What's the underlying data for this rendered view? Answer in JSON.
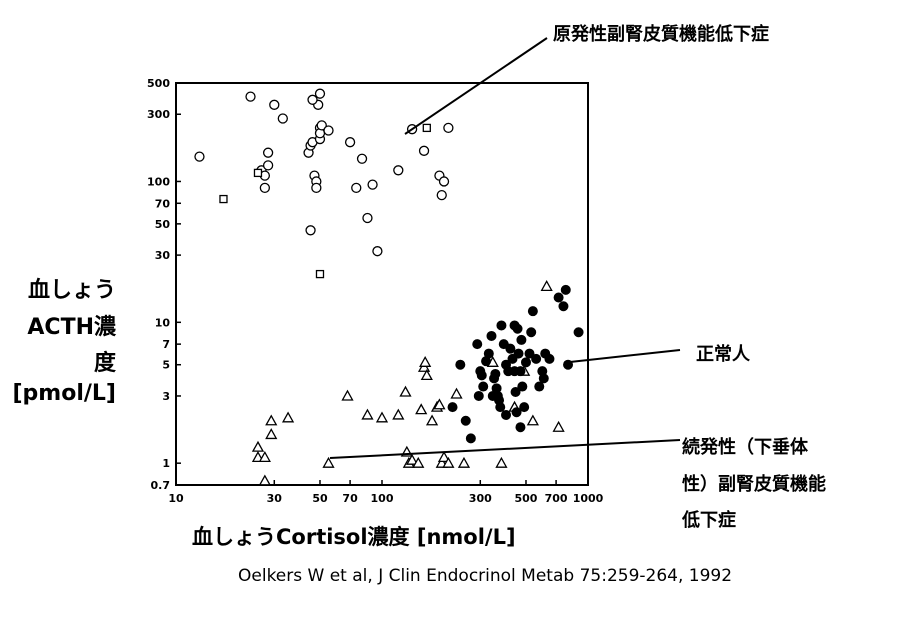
{
  "y_axis_label": [
    "血しょう",
    "ACTH濃",
    "度",
    "[pmol/L]"
  ],
  "x_axis_label": "血しょうCortisol濃度 [nmol/L]",
  "citation": "Oelkers W et al, J Clin Endocrinol Metab 75:259-264, 1992",
  "annotations": {
    "primary": "原発性副腎皮質機能低下症",
    "normal": "正常人",
    "secondary": [
      "続発性（下垂体",
      "性）副腎皮質機能",
      "低下症"
    ]
  },
  "chart_data": {
    "type": "scatter",
    "x_scale": "log",
    "y_scale": "log",
    "xlim": [
      10,
      1000
    ],
    "ylim": [
      0.7,
      500
    ],
    "x_ticks": [
      10,
      30,
      50,
      70,
      100,
      300,
      500,
      700,
      1000
    ],
    "x_tick_labels": [
      "10",
      "30",
      "50",
      "70",
      "100",
      "300",
      "500",
      "700",
      "1000"
    ],
    "y_ticks": [
      0.7,
      1,
      3,
      5,
      7,
      10,
      30,
      50,
      70,
      100,
      300,
      500
    ],
    "y_tick_labels": [
      "0.7",
      "1",
      "3",
      "5",
      "7",
      "10",
      "30",
      "50",
      "70",
      "100",
      "300",
      "500"
    ],
    "grid": false,
    "legend": "none",
    "series": [
      {
        "marker": "open-circle",
        "points": [
          [
            13,
            150
          ],
          [
            23,
            400
          ],
          [
            26,
            120
          ],
          [
            27,
            110
          ],
          [
            27,
            90
          ],
          [
            28,
            130
          ],
          [
            28,
            160
          ],
          [
            30,
            350
          ],
          [
            33,
            280
          ],
          [
            44,
            160
          ],
          [
            45,
            180
          ],
          [
            46,
            190
          ],
          [
            47,
            110
          ],
          [
            48,
            100
          ],
          [
            48,
            90
          ],
          [
            49,
            350
          ],
          [
            50,
            420
          ],
          [
            46,
            380
          ],
          [
            45,
            45
          ],
          [
            50,
            240
          ],
          [
            50,
            200
          ],
          [
            50,
            220
          ],
          [
            51,
            250
          ],
          [
            55,
            230
          ],
          [
            70,
            190
          ],
          [
            75,
            90
          ],
          [
            80,
            145
          ],
          [
            90,
            95
          ],
          [
            85,
            55
          ],
          [
            95,
            32
          ],
          [
            120,
            120
          ],
          [
            140,
            235
          ],
          [
            160,
            165
          ],
          [
            190,
            110
          ],
          [
            195,
            80
          ],
          [
            200,
            100
          ],
          [
            210,
            240
          ]
        ]
      },
      {
        "marker": "open-square",
        "points": [
          [
            17,
            75
          ],
          [
            25,
            115
          ],
          [
            50,
            22
          ],
          [
            165,
            240
          ]
        ]
      },
      {
        "marker": "open-triangle",
        "points": [
          [
            25,
            1.3
          ],
          [
            25,
            1.1
          ],
          [
            27,
            1.1
          ],
          [
            27,
            0.75
          ],
          [
            29,
            2.0
          ],
          [
            29,
            1.6
          ],
          [
            35,
            2.1
          ],
          [
            55,
            1.0
          ],
          [
            68,
            3.0
          ],
          [
            85,
            2.2
          ],
          [
            100,
            2.1
          ],
          [
            120,
            2.2
          ],
          [
            130,
            3.2
          ],
          [
            132,
            1.2
          ],
          [
            135,
            1.0
          ],
          [
            140,
            1.05
          ],
          [
            150,
            1.0
          ],
          [
            155,
            2.4
          ],
          [
            160,
            4.8
          ],
          [
            162,
            5.2
          ],
          [
            165,
            4.2
          ],
          [
            175,
            2.0
          ],
          [
            185,
            2.5
          ],
          [
            190,
            2.6
          ],
          [
            195,
            1.0
          ],
          [
            200,
            1.1
          ],
          [
            210,
            1.0
          ],
          [
            230,
            3.1
          ],
          [
            250,
            1.0
          ],
          [
            345,
            5.2
          ],
          [
            380,
            1.0
          ],
          [
            440,
            2.5
          ],
          [
            490,
            4.5
          ],
          [
            540,
            2.0
          ],
          [
            630,
            18.0
          ],
          [
            720,
            1.8
          ]
        ]
      },
      {
        "marker": "filled-circle",
        "points": [
          [
            220,
            2.5
          ],
          [
            240,
            5.0
          ],
          [
            255,
            2.0
          ],
          [
            270,
            1.5
          ],
          [
            290,
            7.0
          ],
          [
            295,
            3.0
          ],
          [
            300,
            4.5
          ],
          [
            305,
            4.2
          ],
          [
            310,
            3.5
          ],
          [
            320,
            5.3
          ],
          [
            330,
            6.0
          ],
          [
            340,
            8.0
          ],
          [
            345,
            3.0
          ],
          [
            350,
            4.0
          ],
          [
            355,
            4.3
          ],
          [
            360,
            3.4
          ],
          [
            365,
            3.0
          ],
          [
            370,
            2.8
          ],
          [
            375,
            2.5
          ],
          [
            380,
            9.5
          ],
          [
            390,
            7.0
          ],
          [
            400,
            5.0
          ],
          [
            410,
            4.5
          ],
          [
            420,
            6.5
          ],
          [
            430,
            5.5
          ],
          [
            440,
            4.5
          ],
          [
            445,
            3.2
          ],
          [
            450,
            2.3
          ],
          [
            455,
            9.0
          ],
          [
            460,
            6.0
          ],
          [
            470,
            4.5
          ],
          [
            475,
            7.5
          ],
          [
            480,
            3.5
          ],
          [
            490,
            2.5
          ],
          [
            500,
            5.2
          ],
          [
            520,
            6.0
          ],
          [
            530,
            8.5
          ],
          [
            540,
            12.0
          ],
          [
            560,
            5.5
          ],
          [
            580,
            3.5
          ],
          [
            600,
            4.5
          ],
          [
            620,
            6.0
          ],
          [
            650,
            5.5
          ],
          [
            720,
            15.0
          ],
          [
            780,
            17.0
          ],
          [
            760,
            13.0
          ],
          [
            800,
            5.0
          ],
          [
            900,
            8.5
          ],
          [
            610,
            4.0
          ],
          [
            470,
            1.8
          ],
          [
            440,
            9.5
          ],
          [
            400,
            2.2
          ]
        ]
      }
    ]
  }
}
